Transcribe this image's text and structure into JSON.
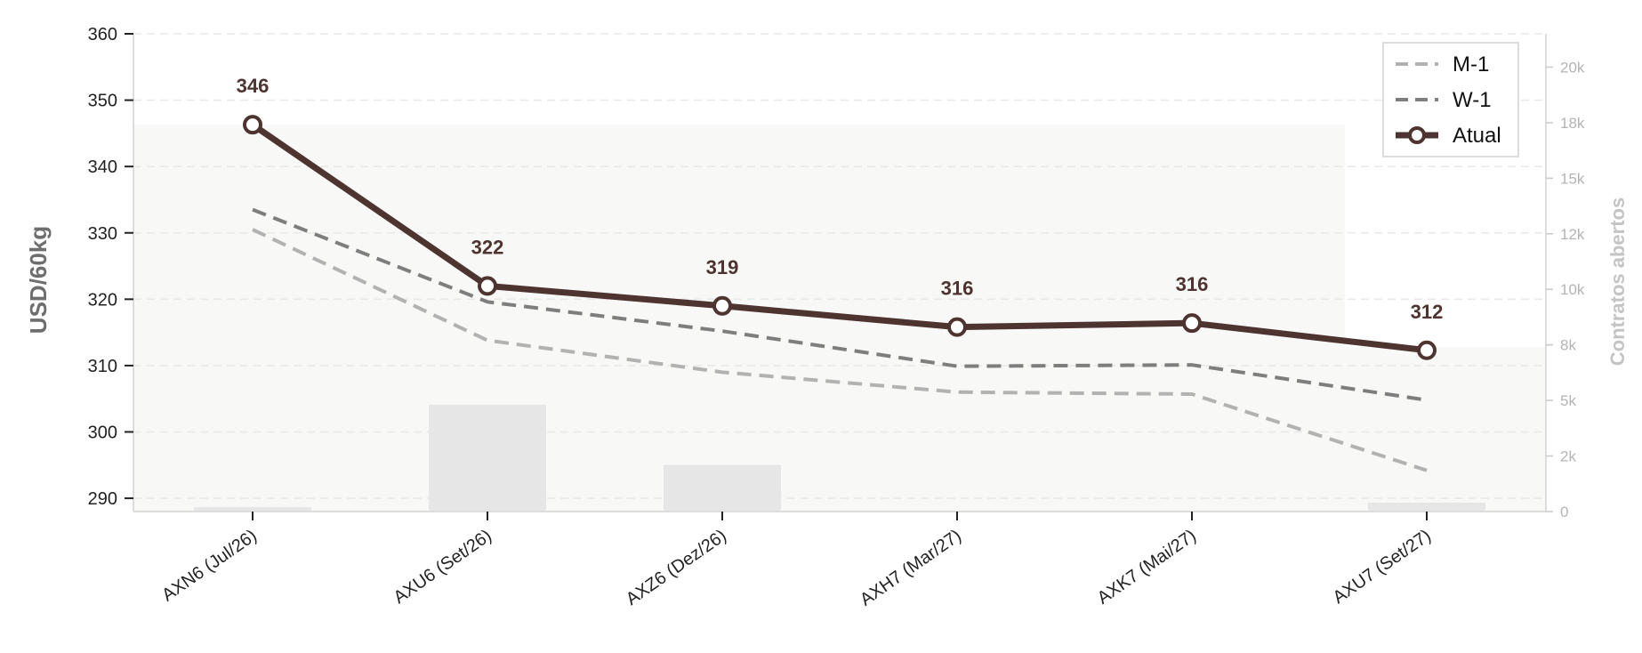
{
  "chart_data": {
    "type": "line",
    "categories": [
      "AXN6 (Jul/26)",
      "AXU6 (Set/26)",
      "AXZ6 (Dez/26)",
      "AXH7 (Mar/27)",
      "AXK7 (Mai/27)",
      "AXU7 (Set/27)"
    ],
    "ylabel": "USD/60kg",
    "y2label": "Contratos abertos",
    "ylim": [
      288,
      360
    ],
    "yticks": [
      290,
      300,
      310,
      320,
      330,
      340,
      350,
      360
    ],
    "y2lim": [
      0,
      21500
    ],
    "y2ticks": [
      {
        "value": 0,
        "label": "0"
      },
      {
        "value": 2500,
        "label": "2k"
      },
      {
        "value": 5000,
        "label": "5k"
      },
      {
        "value": 7500,
        "label": "8k"
      },
      {
        "value": 10000,
        "label": "10k"
      },
      {
        "value": 12500,
        "label": "12k"
      },
      {
        "value": 15000,
        "label": "15k"
      },
      {
        "value": 17500,
        "label": "18k"
      },
      {
        "value": 20000,
        "label": "20k"
      }
    ],
    "grid": true,
    "legend_position": "top-right",
    "series": [
      {
        "name": "M-1",
        "style": "dashed",
        "color": "#b2b2b2",
        "values": [
          330.5,
          313.8,
          309.0,
          306.0,
          305.7,
          294.2
        ]
      },
      {
        "name": "W-1",
        "style": "dashed",
        "color": "#7e7e7e",
        "values": [
          333.5,
          319.6,
          315.2,
          309.9,
          310.1,
          304.8
        ]
      },
      {
        "name": "Atual",
        "style": "solid-markers",
        "color": "#4e3430",
        "values": [
          346.3,
          322.0,
          319.0,
          315.8,
          316.4,
          312.3
        ]
      }
    ],
    "data_labels": [
      "346",
      "322",
      "319",
      "316",
      "316",
      "312"
    ],
    "open_interest": {
      "values": [
        200,
        4800,
        2100,
        0,
        0,
        400
      ],
      "color": "#e6e6e6"
    },
    "background_area": {
      "description": "light shaded region behind lines",
      "left_level": 17400,
      "right_level": 7400,
      "color": "#f8f8f6"
    }
  }
}
